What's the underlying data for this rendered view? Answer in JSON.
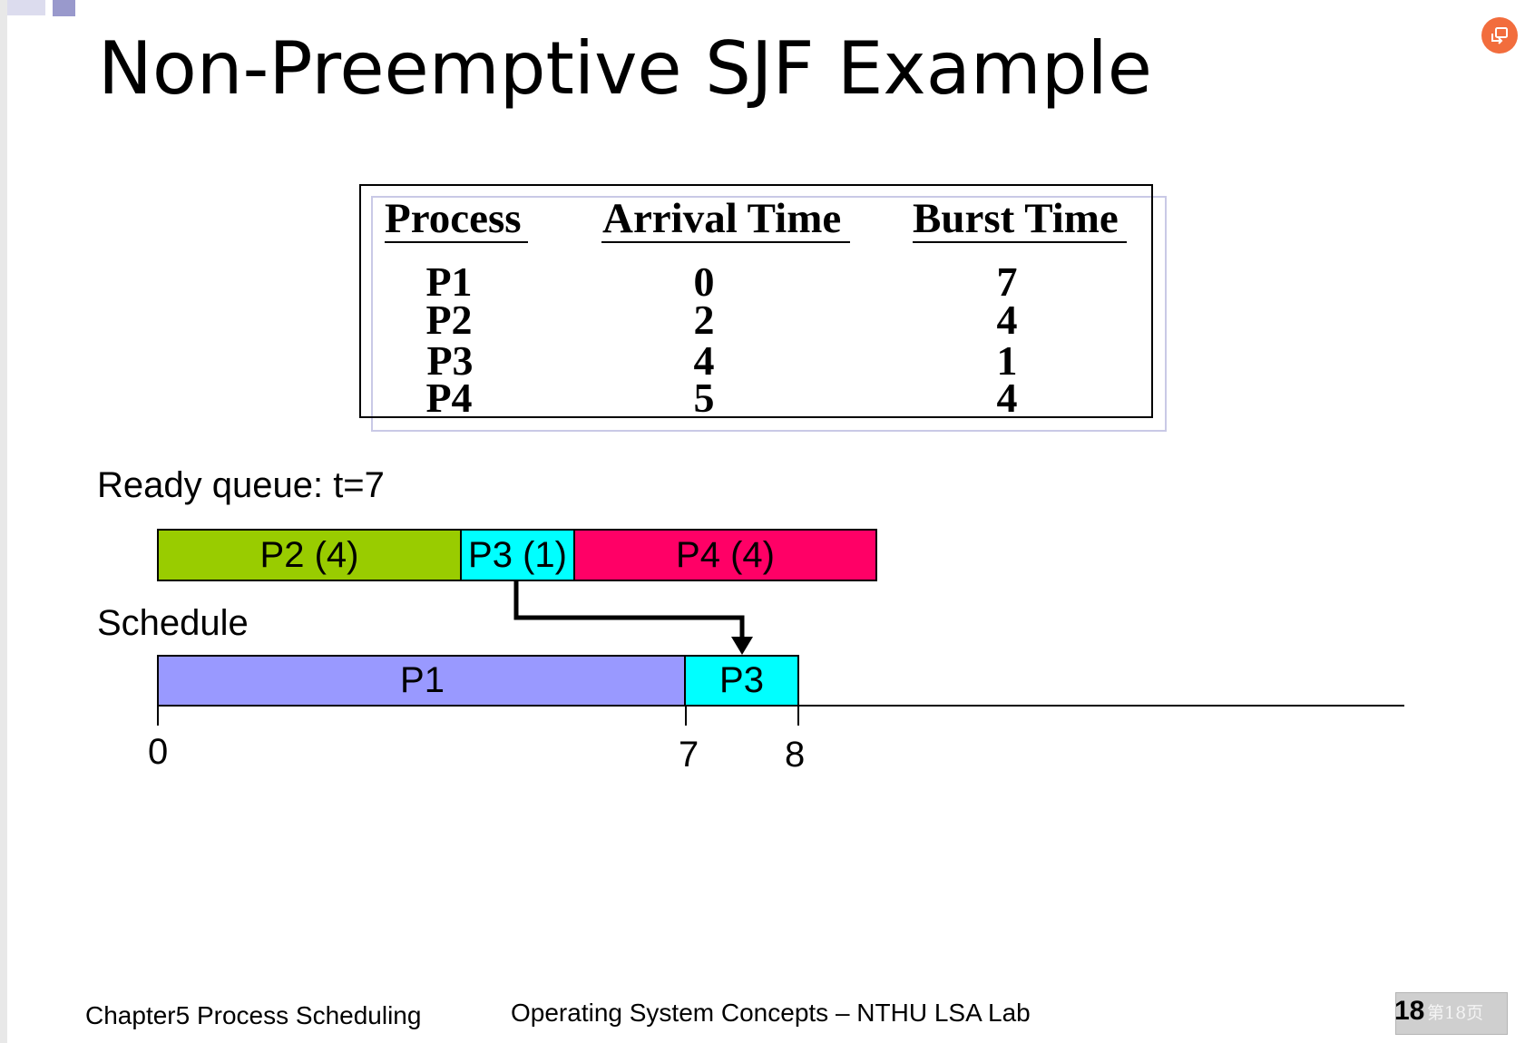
{
  "title": "Non-Preemptive SJF Example",
  "table": {
    "headers": [
      "Process",
      "Arrival Time",
      "Burst Time"
    ],
    "rows": [
      {
        "process": "P1",
        "arrival": "0",
        "burst": "7"
      },
      {
        "process": "P2",
        "arrival": "2",
        "burst": "4"
      },
      {
        "process": "P3",
        "arrival": "4",
        "burst": "1"
      },
      {
        "process": "P4",
        "arrival": "5",
        "burst": "4"
      }
    ]
  },
  "ready_queue": {
    "label": "Ready queue: t=7",
    "items": [
      {
        "label": "P2 (4)",
        "color": "#99cc00"
      },
      {
        "label": "P3 (1)",
        "color": "#00ffff"
      },
      {
        "label": "P4 (4)",
        "color": "#ff0066"
      }
    ]
  },
  "schedule": {
    "label": "Schedule",
    "items": [
      {
        "label": "P1",
        "color": "#9999ff"
      },
      {
        "label": "P3",
        "color": "#00ffff"
      }
    ],
    "ticks": [
      "0",
      "7",
      "8"
    ]
  },
  "footer": {
    "left": "Chapter5 Process Scheduling",
    "center": "Operating System Concepts – NTHU LSA Lab",
    "page_number": "18",
    "page_label_cn": "第18页"
  },
  "icons": {
    "share": "share-icon"
  }
}
